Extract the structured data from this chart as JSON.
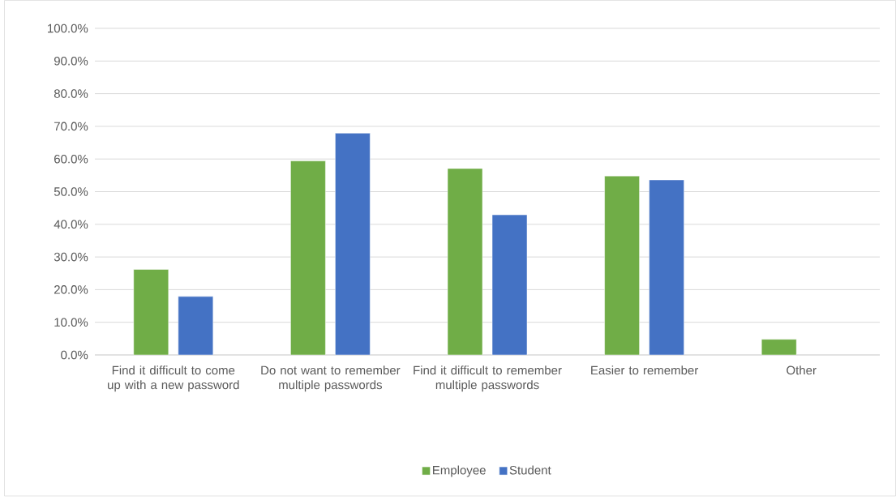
{
  "chart_data": {
    "type": "bar",
    "categories": [
      "Find it difficult to come up with a new password",
      "Do not want to remember multiple passwords",
      "Find it difficult to remember multiple passwords",
      "Easier to remember",
      "Other"
    ],
    "series": [
      {
        "name": "Employee",
        "color": "#70ad47",
        "values": [
          26.2,
          59.4,
          57.1,
          54.8,
          4.8
        ]
      },
      {
        "name": "Student",
        "color": "#4472c4",
        "values": [
          17.9,
          67.9,
          42.9,
          53.6,
          null
        ]
      }
    ],
    "ylim": [
      0,
      100
    ],
    "yticks": [
      {
        "value": 0,
        "label": "0.0%"
      },
      {
        "value": 10,
        "label": "10.0%"
      },
      {
        "value": 20,
        "label": "20.0%"
      },
      {
        "value": 30,
        "label": "30.0%"
      },
      {
        "value": 40,
        "label": "40.0%"
      },
      {
        "value": 50,
        "label": "50.0%"
      },
      {
        "value": 60,
        "label": "60.0%"
      },
      {
        "value": 70,
        "label": "70.0%"
      },
      {
        "value": 80,
        "label": "80.0%"
      },
      {
        "value": 90,
        "label": "90.0%"
      },
      {
        "value": 100,
        "label": "100.0%"
      }
    ],
    "grid": "y",
    "legend": "bottom"
  }
}
